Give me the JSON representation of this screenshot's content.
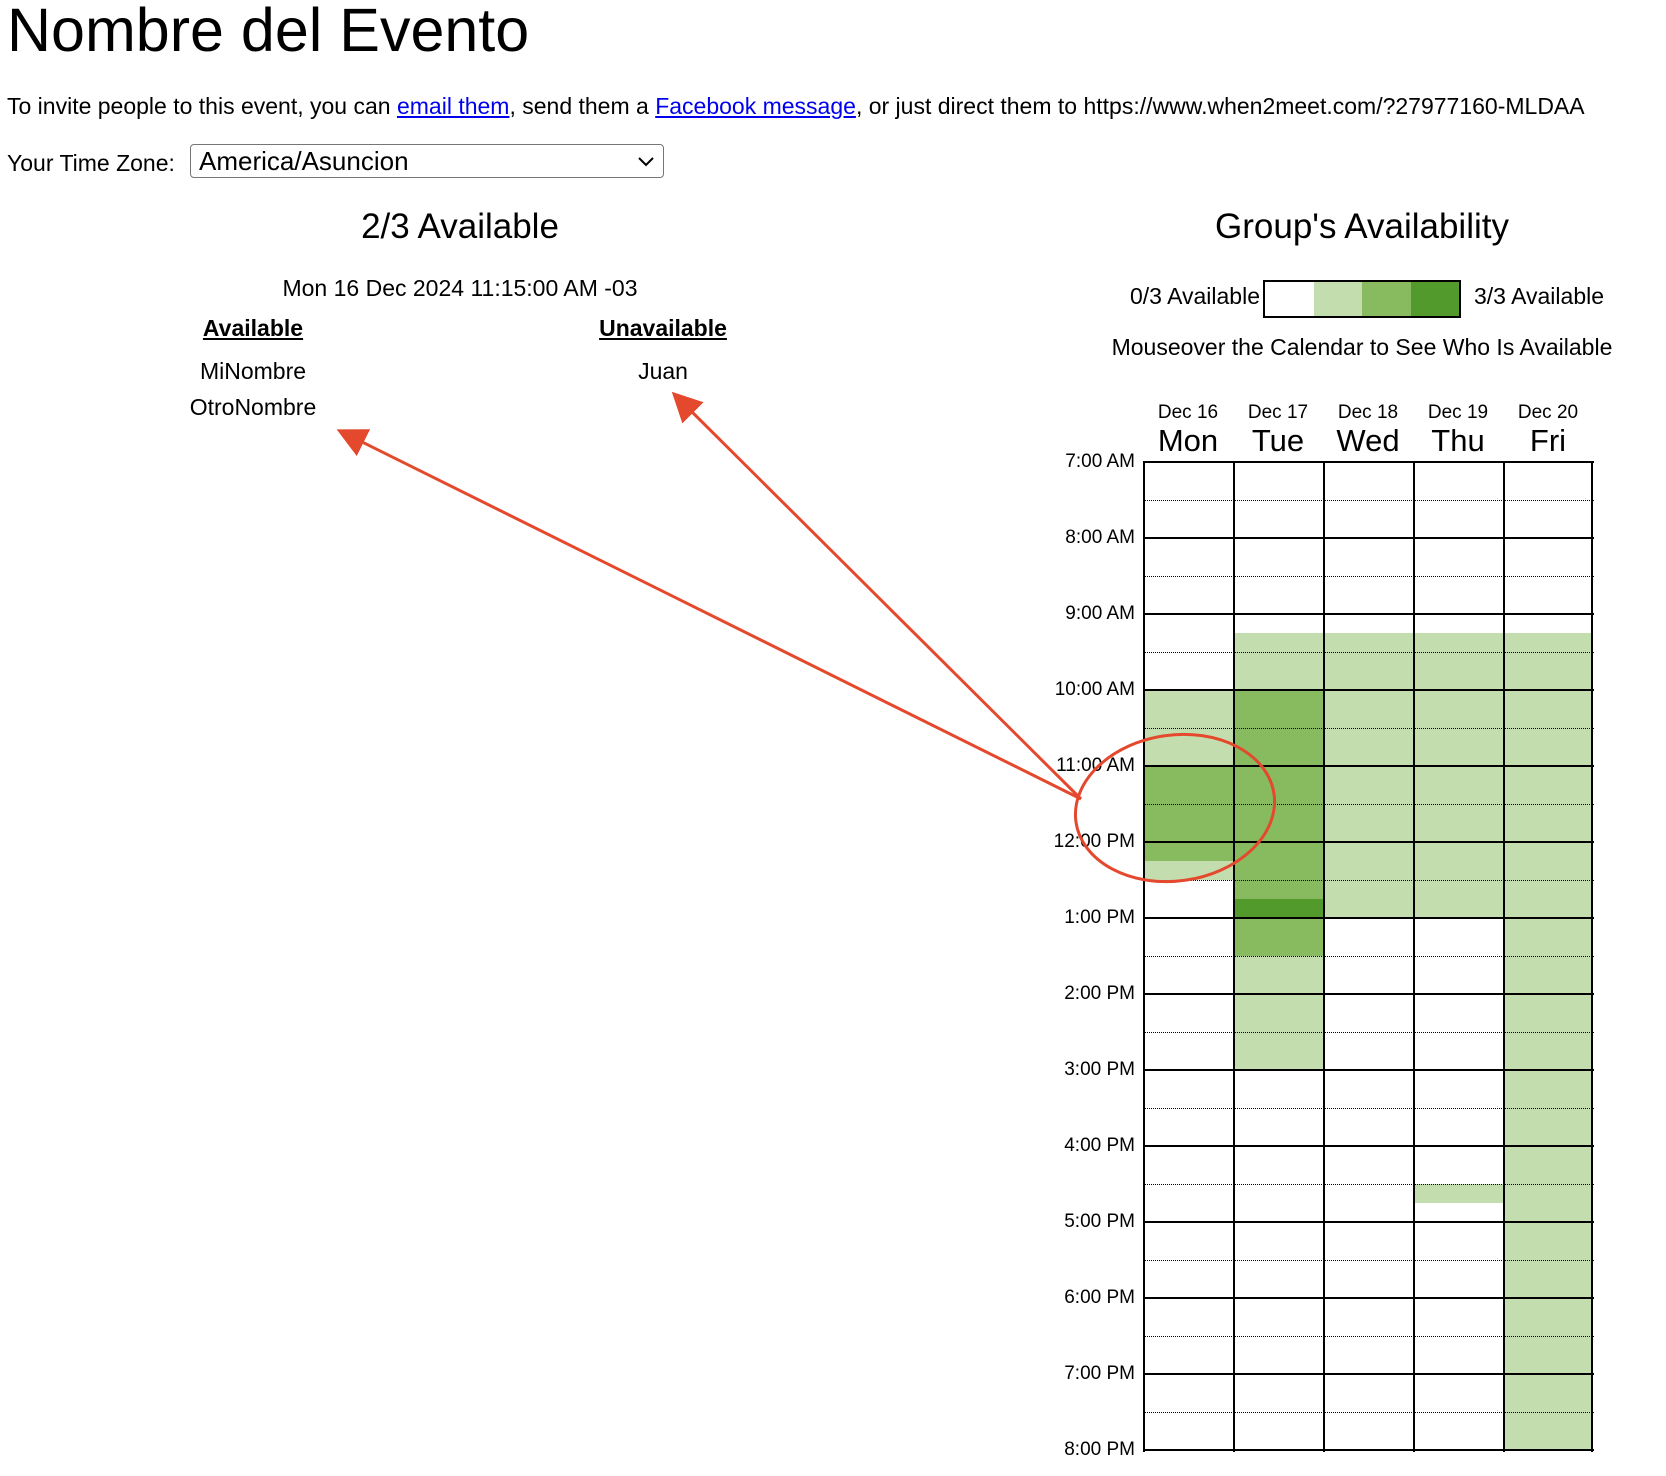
{
  "event": {
    "title": "Nombre del Evento",
    "invite_prefix": "To invite people to this event, you can ",
    "invite_email_link": "email them",
    "invite_middle": ", send them a ",
    "invite_facebook_link": "Facebook message",
    "invite_suffix": ", or just direct them to ",
    "event_url": "https://www.when2meet.com/?27977160-MLDAA"
  },
  "timezone": {
    "label": "Your Time Zone:",
    "selected": "America/Asuncion"
  },
  "availability_panel": {
    "summary": "2/3 Available",
    "slot_time": "Mon 16 Dec 2024 11:15:00 AM -03",
    "available_header": "Available",
    "unavailable_header": "Unavailable",
    "available_names": [
      "MiNombre",
      "OtroNombre"
    ],
    "unavailable_names": [
      "Juan"
    ]
  },
  "group_panel": {
    "title": "Group's Availability",
    "legend_min": "0/3 Available",
    "legend_max": "3/3 Available",
    "legend_colors": [
      "#ffffff",
      "#c4ddae",
      "#88bb60",
      "#539a2c"
    ],
    "mouseover_hint": "Mouseover the Calendar to See Who Is Available"
  },
  "calendar": {
    "days": [
      {
        "date": "Dec 16",
        "name": "Mon"
      },
      {
        "date": "Dec 17",
        "name": "Tue"
      },
      {
        "date": "Dec 18",
        "name": "Wed"
      },
      {
        "date": "Dec 19",
        "name": "Thu"
      },
      {
        "date": "Dec 20",
        "name": "Fri"
      }
    ],
    "time_labels": [
      "7:00 AM",
      "8:00 AM",
      "9:00 AM",
      "10:00 AM",
      "11:00 AM",
      "12:00 PM",
      "1:00 PM",
      "2:00 PM",
      "3:00 PM",
      "4:00 PM",
      "5:00 PM",
      "6:00 PM",
      "7:00 PM",
      "8:00 PM"
    ],
    "slot_minutes": 15,
    "start_hour": 7,
    "end_hour": 20,
    "availability_ranges": [
      {
        "day": "Mon",
        "from": "10:00 AM",
        "to": "11:00 AM",
        "available": 1
      },
      {
        "day": "Mon",
        "from": "11:00 AM",
        "to": "12:15 PM",
        "available": 2
      },
      {
        "day": "Mon",
        "from": "12:15 PM",
        "to": "12:30 PM",
        "available": 1
      },
      {
        "day": "Tue",
        "from": "9:15 AM",
        "to": "10:00 AM",
        "available": 1
      },
      {
        "day": "Tue",
        "from": "10:00 AM",
        "to": "12:45 PM",
        "available": 2
      },
      {
        "day": "Tue",
        "from": "12:45 PM",
        "to": "1:00 PM",
        "available": 3
      },
      {
        "day": "Tue",
        "from": "1:00 PM",
        "to": "1:30 PM",
        "available": 2
      },
      {
        "day": "Tue",
        "from": "1:30 PM",
        "to": "3:00 PM",
        "available": 1
      },
      {
        "day": "Wed",
        "from": "9:15 AM",
        "to": "1:00 PM",
        "available": 1
      },
      {
        "day": "Thu",
        "from": "9:15 AM",
        "to": "1:00 PM",
        "available": 1
      },
      {
        "day": "Thu",
        "from": "4:30 PM",
        "to": "4:45 PM",
        "available": 1
      },
      {
        "day": "Fri",
        "from": "9:15 AM",
        "to": "8:00 PM",
        "available": 1
      }
    ]
  }
}
